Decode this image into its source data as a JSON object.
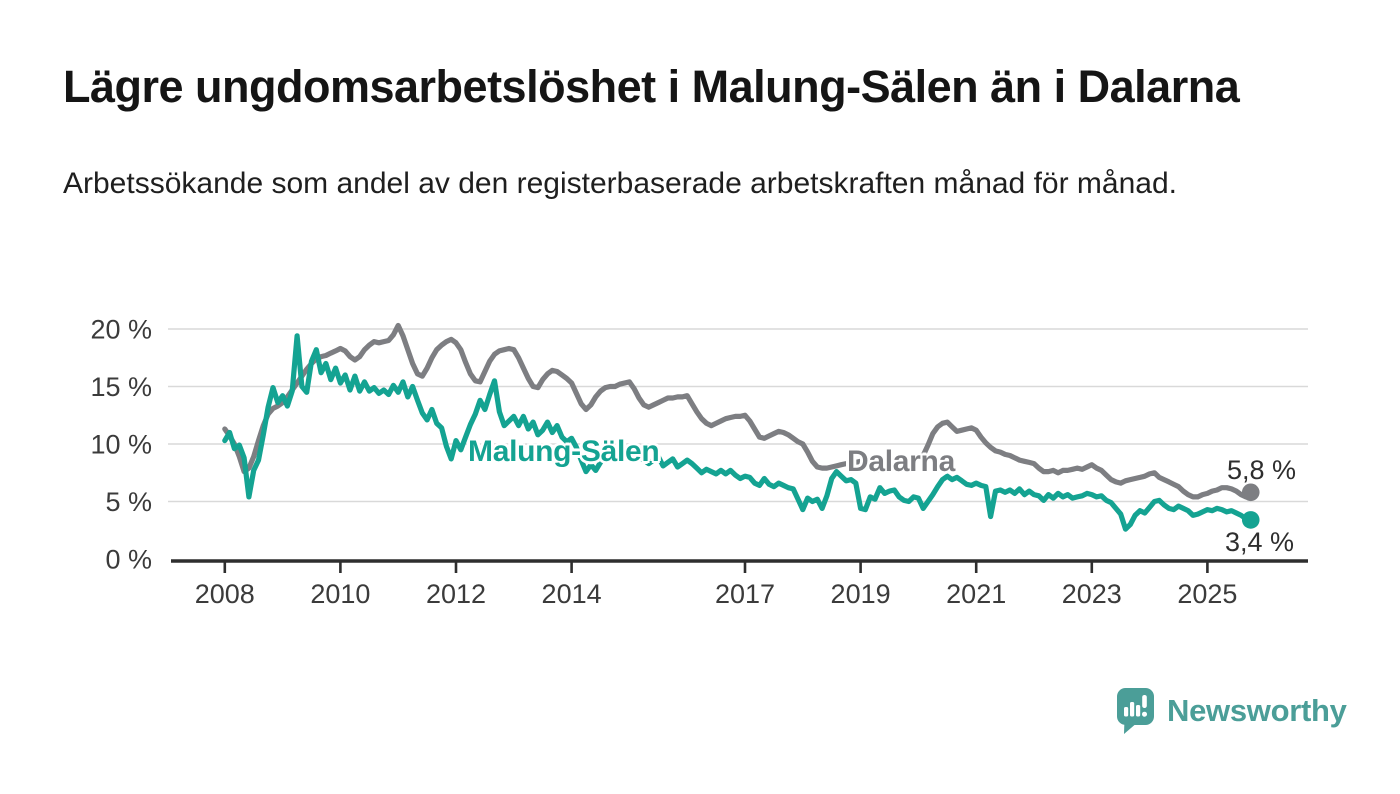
{
  "header": {
    "title": "Lägre ungdomsarbetslöshet i Malung-Sälen än i Dalarna",
    "subtitle": "Arbetssökande som andel av den registerbaserade arbetskraften månad för månad."
  },
  "chart_data": {
    "type": "line",
    "title": "Lägre ungdomsarbetslöshet i Malung-Sälen än i Dalarna",
    "xlabel": "",
    "ylabel": "",
    "unit": "%",
    "grid": "horizontal",
    "legend_position": "inline-labels",
    "xlim": [
      2007.9,
      2026.7
    ],
    "ylim": [
      0,
      21
    ],
    "x_ticks": [
      2008,
      2010,
      2012,
      2014,
      2017,
      2019,
      2021,
      2023,
      2025
    ],
    "x_tick_labels": [
      "2008",
      "2010",
      "2012",
      "2014",
      "2017",
      "2019",
      "2021",
      "2023",
      "2025"
    ],
    "y_ticks": [
      0,
      5,
      10,
      15,
      20
    ],
    "y_tick_labels": [
      "0 %",
      "5 %",
      "10 %",
      "15 %",
      "20 %"
    ],
    "start": "2008-01",
    "interval": "month",
    "series": [
      {
        "name": "Malung-Sälen",
        "color": "#14a392",
        "end_label": "3,4 %",
        "end_value": 3.4,
        "values": [
          10.3,
          11.0,
          9.6,
          9.9,
          8.8,
          5.4,
          7.7,
          8.6,
          10.8,
          13.2,
          14.9,
          13.6,
          14.2,
          13.3,
          14.6,
          19.4,
          15.0,
          14.5,
          17.2,
          18.2,
          16.2,
          17.0,
          15.6,
          16.6,
          15.3,
          16.0,
          14.7,
          15.9,
          14.6,
          15.4,
          14.6,
          14.9,
          14.4,
          14.7,
          14.3,
          15.1,
          14.5,
          15.4,
          14.1,
          15.0,
          13.8,
          12.7,
          12.1,
          13.0,
          11.8,
          11.4,
          9.8,
          8.7,
          10.3,
          9.5,
          10.6,
          11.7,
          12.6,
          13.8,
          13.0,
          14.3,
          15.5,
          12.8,
          11.6,
          12.0,
          12.4,
          11.6,
          12.4,
          11.3,
          11.9,
          10.8,
          11.2,
          11.9,
          11.0,
          11.6,
          10.6,
          10.2,
          10.5,
          9.7,
          8.6,
          7.6,
          8.2,
          7.7,
          8.4,
          9.0,
          9.4,
          9.3,
          9.1,
          9.4,
          9.6,
          9.2,
          8.8,
          8.6,
          8.3,
          8.6,
          8.9,
          8.1,
          8.4,
          8.7,
          8.0,
          8.3,
          8.6,
          8.3,
          7.9,
          7.5,
          7.8,
          7.6,
          7.4,
          7.7,
          7.4,
          7.7,
          7.3,
          7.0,
          7.2,
          7.1,
          6.6,
          6.4,
          7.0,
          6.5,
          6.3,
          6.6,
          6.4,
          6.2,
          6.1,
          5.2,
          4.3,
          5.3,
          5.0,
          5.2,
          4.4,
          5.5,
          7.0,
          7.6,
          7.2,
          6.8,
          6.9,
          6.6,
          4.4,
          4.3,
          5.4,
          5.2,
          6.2,
          5.7,
          5.9,
          6.0,
          5.4,
          5.1,
          5.0,
          5.4,
          5.3,
          4.4,
          5.0,
          5.6,
          6.3,
          6.9,
          7.2,
          6.9,
          7.1,
          6.8,
          6.5,
          6.4,
          6.6,
          6.4,
          6.3,
          3.7,
          5.9,
          6.0,
          5.8,
          6.0,
          5.7,
          6.1,
          5.6,
          5.9,
          5.6,
          5.5,
          5.1,
          5.6,
          5.3,
          5.7,
          5.4,
          5.6,
          5.3,
          5.4,
          5.5,
          5.7,
          5.6,
          5.4,
          5.5,
          5.1,
          4.9,
          4.4,
          3.9,
          2.6,
          3.0,
          3.8,
          4.2,
          4.0,
          4.5,
          5.0,
          5.1,
          4.7,
          4.4,
          4.3,
          4.6,
          4.4,
          4.2,
          3.8,
          3.9,
          4.1,
          4.3,
          4.2,
          4.4,
          4.3,
          4.1,
          4.2,
          4.0,
          3.8,
          3.5,
          3.4
        ]
      },
      {
        "name": "Dalarna",
        "color": "#7d7e82",
        "end_label": "5,8 %",
        "end_value": 5.8,
        "values": [
          11.3,
          10.7,
          10.0,
          8.9,
          7.6,
          7.9,
          8.9,
          10.3,
          11.6,
          12.6,
          13.1,
          13.3,
          13.6,
          14.1,
          14.7,
          15.3,
          15.9,
          16.5,
          17.0,
          17.4,
          17.6,
          17.7,
          17.9,
          18.1,
          18.3,
          18.1,
          17.6,
          17.3,
          17.6,
          18.2,
          18.6,
          18.9,
          18.8,
          18.9,
          19.0,
          19.5,
          20.3,
          19.4,
          18.2,
          17.0,
          16.1,
          15.9,
          16.6,
          17.5,
          18.2,
          18.6,
          18.9,
          19.1,
          18.8,
          18.2,
          17.1,
          16.1,
          15.5,
          15.4,
          16.3,
          17.2,
          17.8,
          18.1,
          18.2,
          18.3,
          18.2,
          17.5,
          16.6,
          15.7,
          15.0,
          14.9,
          15.6,
          16.1,
          16.4,
          16.3,
          16.0,
          15.7,
          15.3,
          14.4,
          13.5,
          13.0,
          13.4,
          14.1,
          14.6,
          14.9,
          15.0,
          15.0,
          15.2,
          15.3,
          15.4,
          14.8,
          14.0,
          13.4,
          13.2,
          13.4,
          13.6,
          13.8,
          14.0,
          14.0,
          14.1,
          14.1,
          14.2,
          13.5,
          12.8,
          12.2,
          11.8,
          11.6,
          11.8,
          12.0,
          12.2,
          12.3,
          12.4,
          12.4,
          12.5,
          12.0,
          11.3,
          10.6,
          10.5,
          10.7,
          10.9,
          11.1,
          11.0,
          10.8,
          10.5,
          10.2,
          10.0,
          9.3,
          8.5,
          8.0,
          7.9,
          7.9,
          8.0,
          8.1,
          8.2,
          8.3,
          8.4,
          8.4,
          8.5,
          8.3,
          8.0,
          7.8,
          7.7,
          7.8,
          8.0,
          8.2,
          8.3,
          8.4,
          8.5,
          8.6,
          8.7,
          9.0,
          9.9,
          10.9,
          11.5,
          11.8,
          11.9,
          11.5,
          11.1,
          11.2,
          11.3,
          11.4,
          11.2,
          10.6,
          10.1,
          9.7,
          9.4,
          9.3,
          9.1,
          9.0,
          8.8,
          8.6,
          8.5,
          8.4,
          8.3,
          7.9,
          7.6,
          7.6,
          7.7,
          7.5,
          7.7,
          7.7,
          7.8,
          7.9,
          7.8,
          8.0,
          8.2,
          7.9,
          7.7,
          7.3,
          6.9,
          6.7,
          6.6,
          6.8,
          6.9,
          7.0,
          7.1,
          7.2,
          7.4,
          7.5,
          7.1,
          6.9,
          6.7,
          6.5,
          6.3,
          5.9,
          5.6,
          5.4,
          5.4,
          5.6,
          5.7,
          5.9,
          6.0,
          6.2,
          6.2,
          6.1,
          5.9,
          5.6,
          5.4,
          5.8
        ]
      }
    ],
    "colors": {
      "gridline": "#d9d9d9",
      "axis": "#2e2e2e",
      "tick_label": "#3b3b3b"
    }
  },
  "logo": {
    "text": "Newsworthy",
    "color": "#4b9e98",
    "icon": "newsworthy-bubble-barchart-icon"
  }
}
